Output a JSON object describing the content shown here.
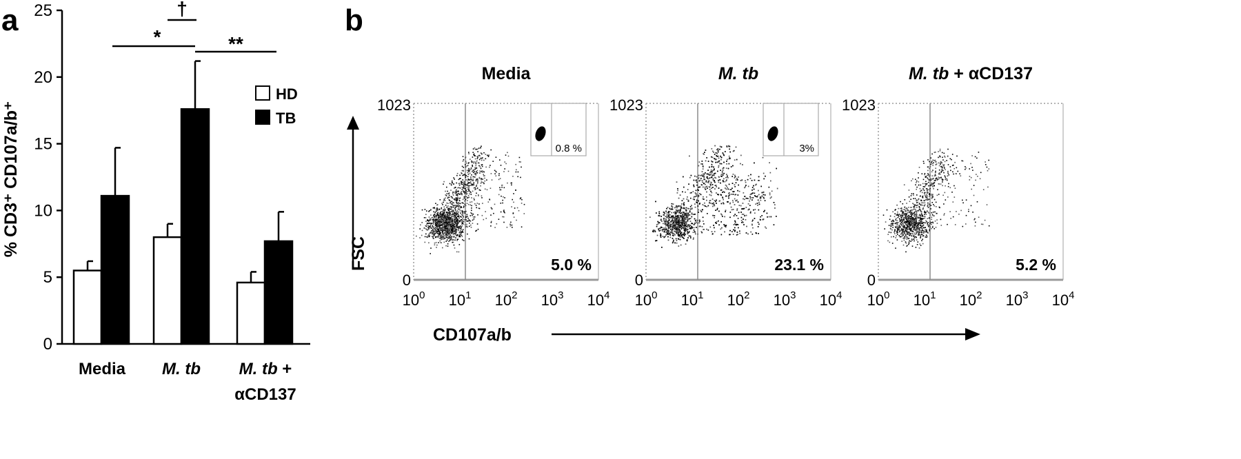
{
  "chart_data": [
    {
      "panel": "a",
      "type": "bar",
      "ylabel": "% CD3⁺ CD107a/b⁺",
      "ylim": [
        0,
        25
      ],
      "yticks": [
        0,
        5,
        10,
        15,
        20,
        25
      ],
      "categories": [
        {
          "label": "Media",
          "label2": ""
        },
        {
          "label": "M. tb",
          "label2": ""
        },
        {
          "label": "M. tb +",
          "label2": "αCD137"
        }
      ],
      "series": [
        {
          "name": "HD",
          "fill": "#ffffff",
          "values": [
            5.5,
            8.0,
            4.6
          ],
          "errors": [
            0.7,
            1.0,
            0.8
          ]
        },
        {
          "name": "TB",
          "fill": "#000000",
          "values": [
            11.1,
            17.6,
            7.7
          ],
          "errors": [
            3.6,
            3.6,
            2.2
          ]
        }
      ],
      "legend_position": "top-right",
      "significance": [
        {
          "label": "*",
          "from": "Media",
          "to": "M. tb"
        },
        {
          "label": "**",
          "from": "M. tb",
          "to": "M. tb + αCD137"
        },
        {
          "label": "†",
          "from": "M. tb HD",
          "to": "M. tb TB"
        }
      ]
    },
    {
      "panel": "b",
      "type": "scatter",
      "xlabel": "CD107a/b",
      "ylabel": "FSC",
      "x_scale": "log",
      "xticks": [
        "10",
        "10",
        "10",
        "10",
        "10"
      ],
      "xtick_exps": [
        "0",
        "1",
        "2",
        "3",
        "4"
      ],
      "ytick_top": "1023",
      "ytick_bottom": "0",
      "plots": [
        {
          "title": "Media",
          "title_suffix": "",
          "percent": "5.0 %",
          "inset_percent": "0.8 %",
          "has_inset": true
        },
        {
          "title": "M. tb",
          "title_suffix": "",
          "percent": "23.1 %",
          "inset_percent": "3%",
          "has_inset": true
        },
        {
          "title": "M. tb",
          "title_suffix": " + αCD137",
          "percent": "5.2 %",
          "inset_percent": "",
          "has_inset": false
        }
      ]
    }
  ]
}
